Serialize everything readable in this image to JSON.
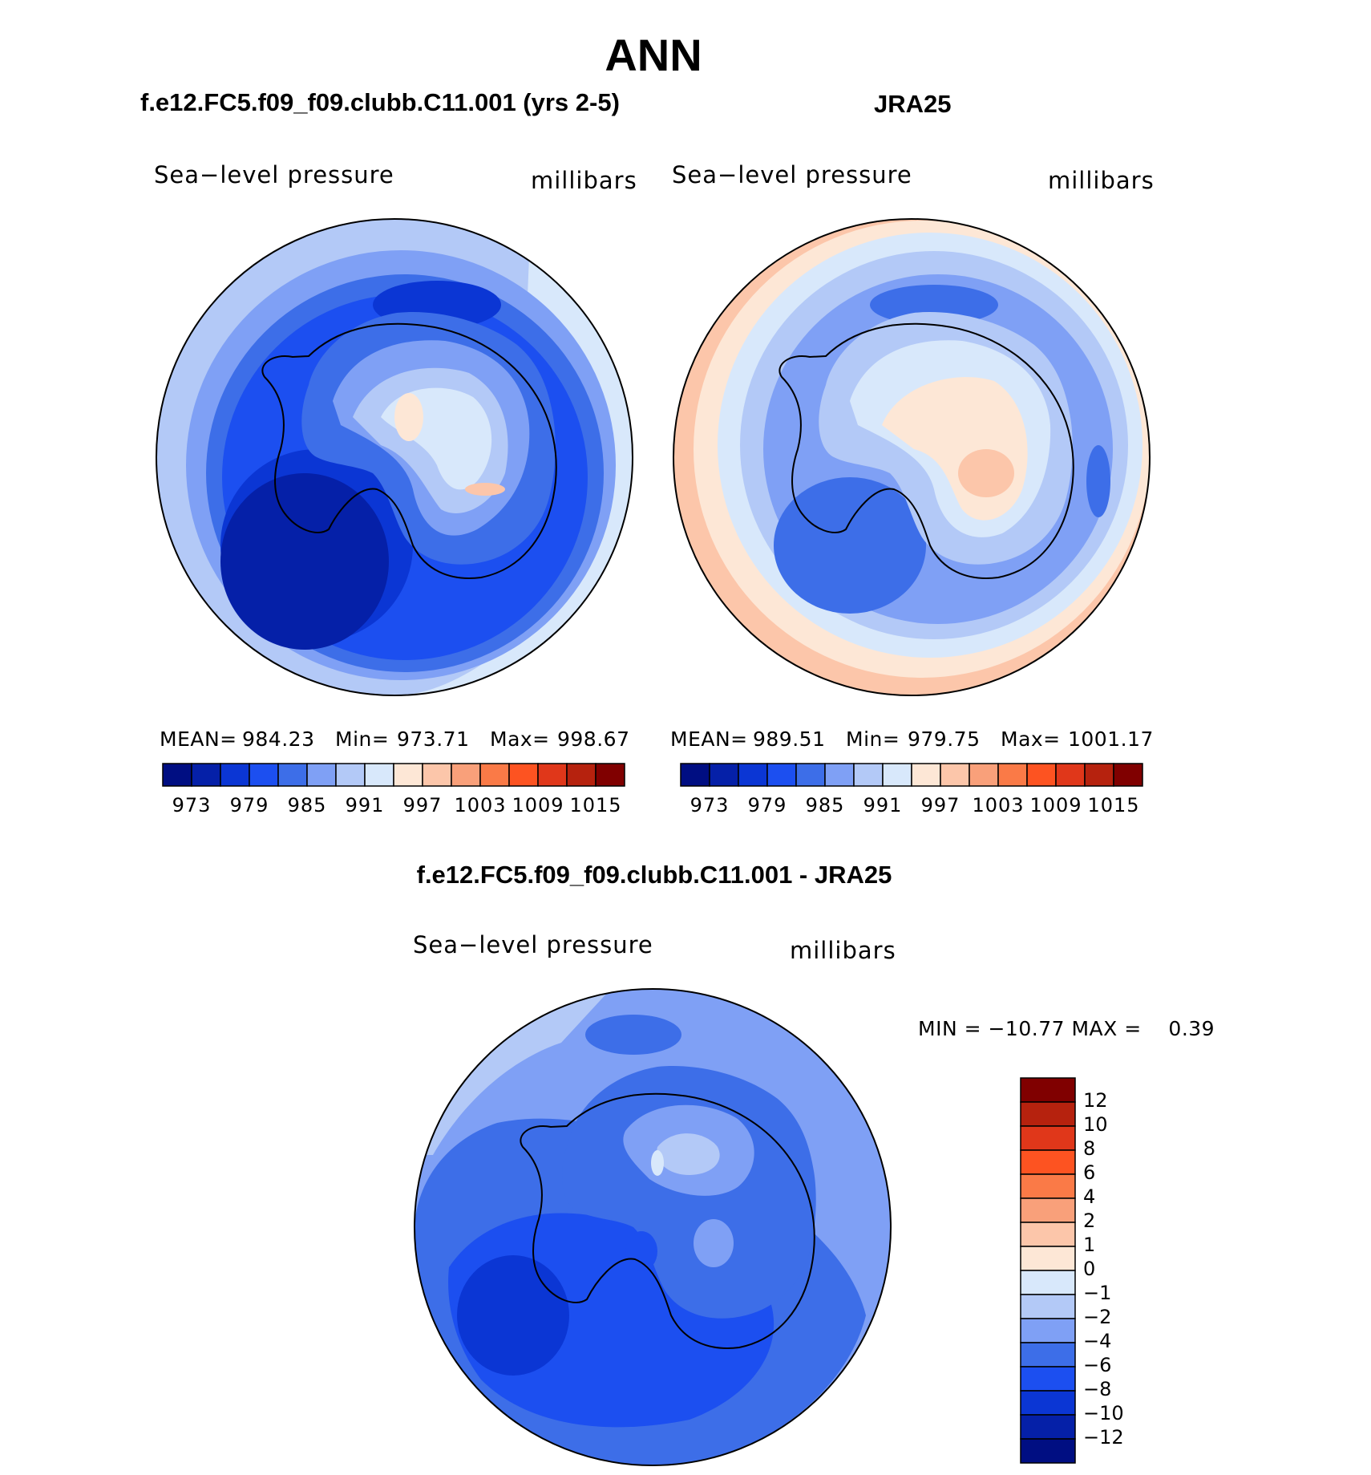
{
  "title": "ANN",
  "panels": {
    "model": {
      "subtitle": "f.e12.FC5.f09_f09.clubb.C11.001 (yrs 2-5)",
      "variable": "Sea−level pressure",
      "units": "millibars",
      "stats": {
        "mean_label": "MEAN=",
        "mean": "984.23",
        "min_label": "Min=",
        "min": "973.71",
        "max_label": "Max=",
        "max": "998.67"
      }
    },
    "obs": {
      "subtitle": "JRA25",
      "variable": "Sea−level pressure",
      "units": "millibars",
      "stats": {
        "mean_label": "MEAN=",
        "mean": "989.51",
        "min_label": "Min=",
        "min": "979.75",
        "max_label": "Max=",
        "max": "1001.17"
      }
    },
    "diff": {
      "subtitle": "f.e12.FC5.f09_f09.clubb.C11.001 - JRA25",
      "variable": "Sea−level pressure",
      "units": "millibars",
      "minmax": "MIN = −10.77 MAX =    0.39"
    }
  },
  "colorbar_main": {
    "colors": [
      "#000e82",
      "#0520a8",
      "#0b36d4",
      "#1c4ff0",
      "#3d6ee8",
      "#7fa0f5",
      "#b3c9f7",
      "#d8e8fb",
      "#fde7d6",
      "#fcc6aa",
      "#f9a07a",
      "#fa7a47",
      "#fd5321",
      "#e0371a",
      "#b6220e",
      "#800000"
    ],
    "labels": [
      "973",
      "979",
      "985",
      "991",
      "997",
      "1003",
      "1009",
      "1015"
    ]
  },
  "colorbar_diff": {
    "colors": [
      "#800000",
      "#b6220e",
      "#e0371a",
      "#fd5321",
      "#fa7a47",
      "#f9a07a",
      "#fcc6aa",
      "#fde7d6",
      "#d8e8fb",
      "#b3c9f7",
      "#7fa0f5",
      "#3d6ee8",
      "#1c4ff0",
      "#0b36d4",
      "#0520a8",
      "#000e82"
    ],
    "labels": [
      "12",
      "10",
      "8",
      "6",
      "4",
      "2",
      "1",
      "0",
      "−1",
      "−2",
      "−4",
      "−6",
      "−8",
      "−10",
      "−12"
    ]
  }
}
